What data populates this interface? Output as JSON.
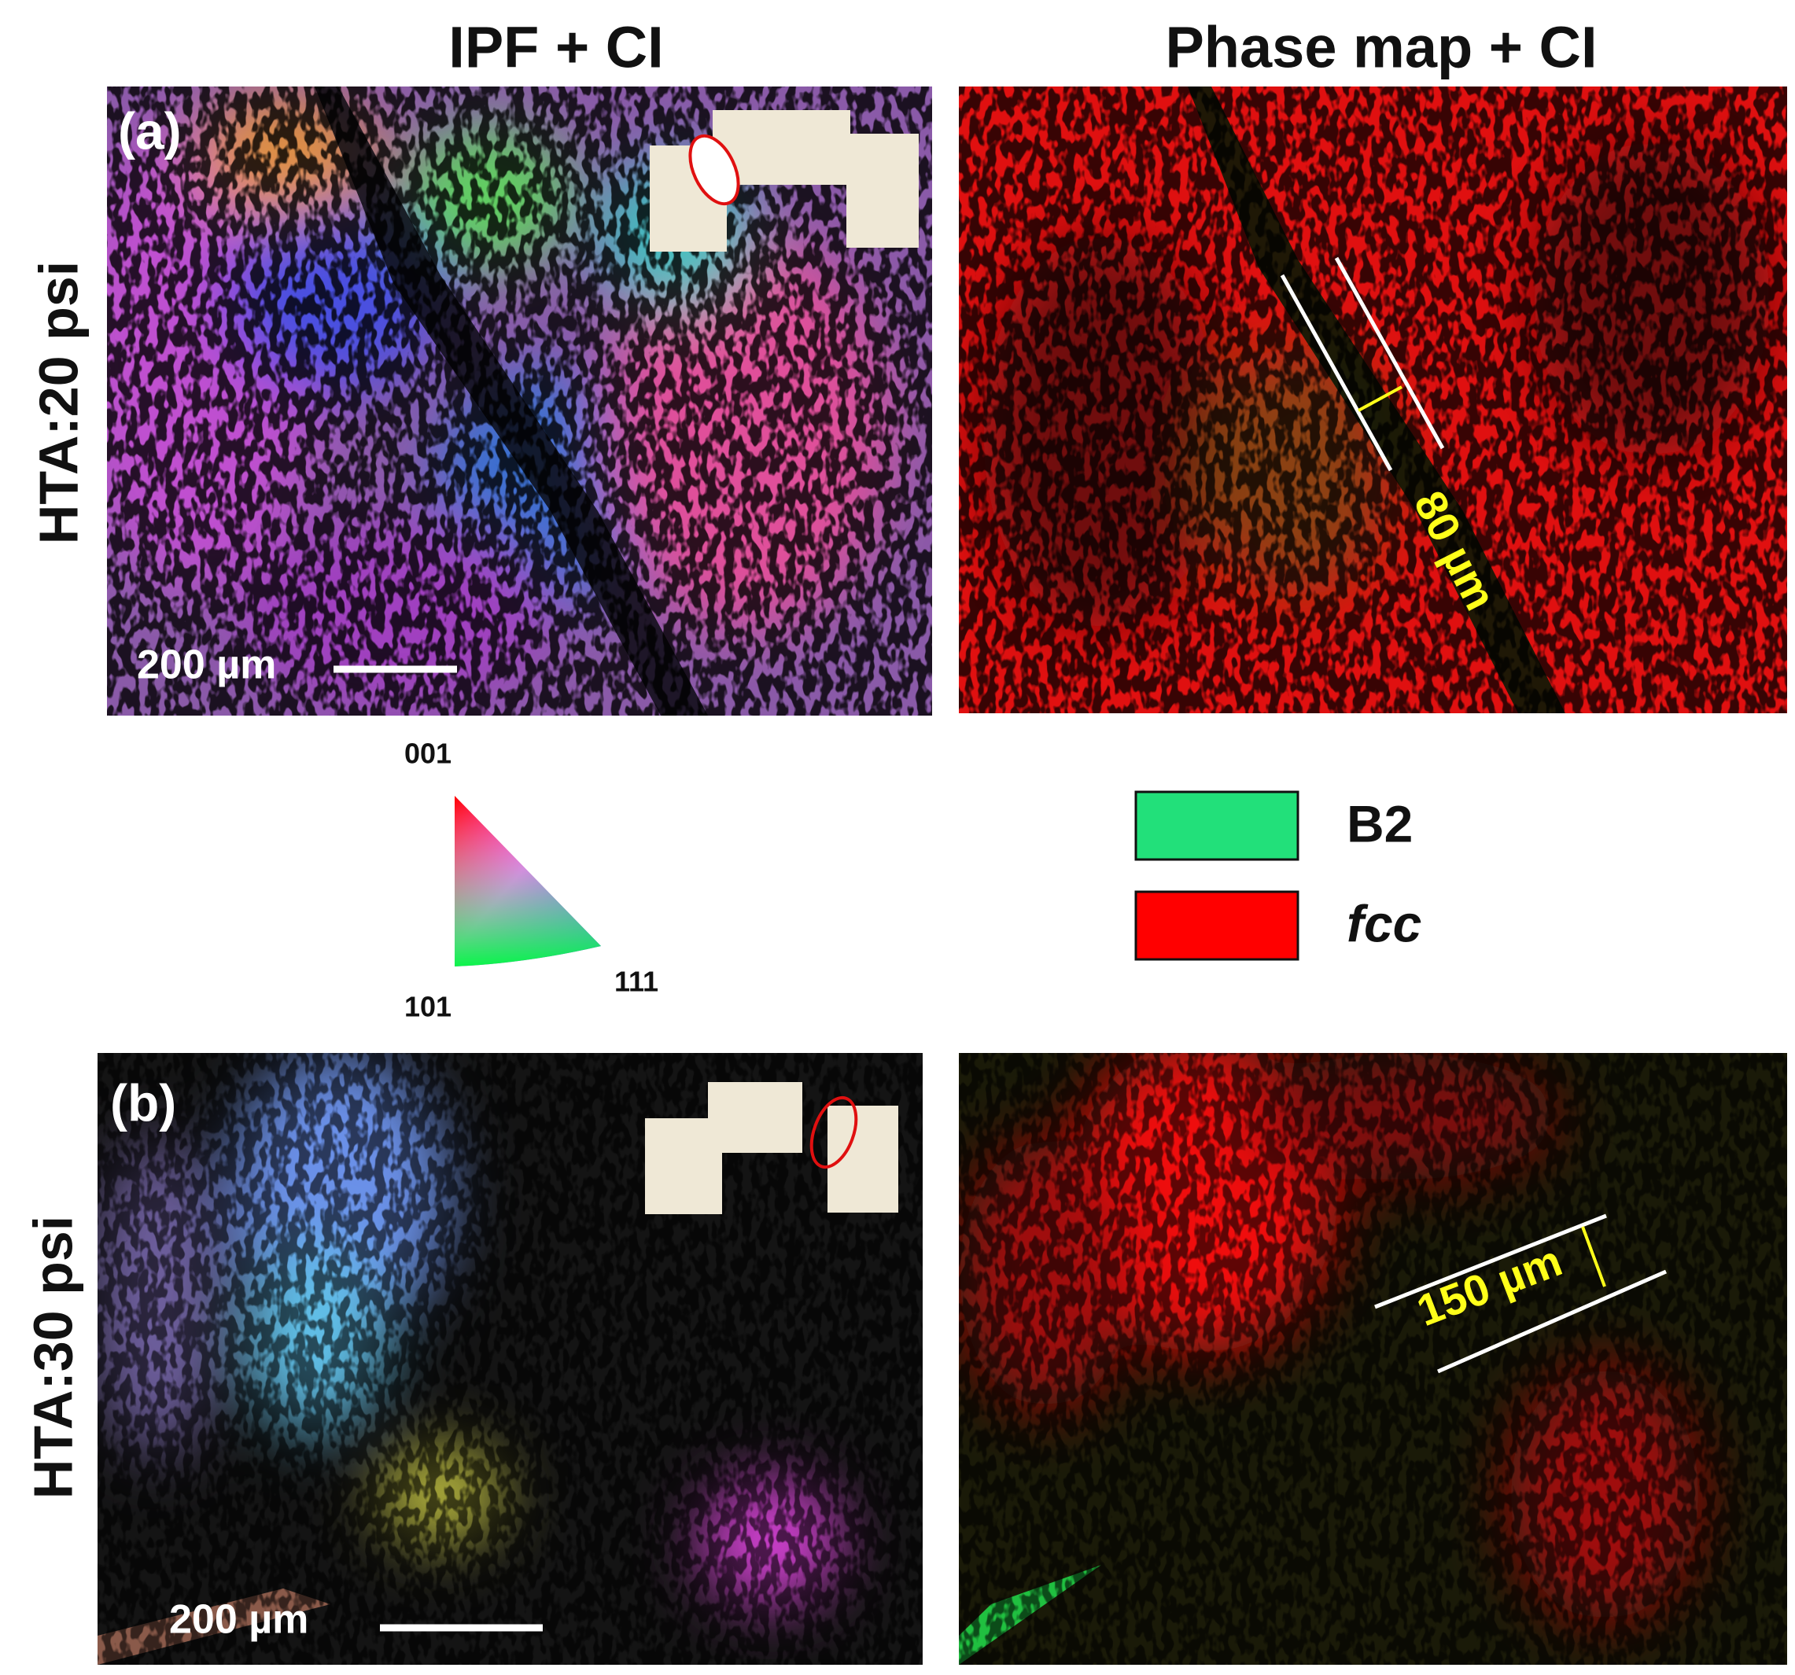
{
  "columns": [
    "IPF + CI",
    "Phase map + CI"
  ],
  "rows": [
    "HTA:20 psi",
    "HTA:30 psi"
  ],
  "panels": [
    {
      "tag": "(a)",
      "scale_bar": "200 µm",
      "measurement": "80 µm"
    },
    {
      "tag": "(b)",
      "scale_bar": "200 µm",
      "measurement": "150 µm"
    }
  ],
  "ipf_key": {
    "top": "001",
    "left": "101",
    "right": "111"
  },
  "legend": [
    {
      "label": "B2",
      "color": "#22e07a"
    },
    {
      "label": "fcc",
      "color": "#ff0000"
    }
  ]
}
